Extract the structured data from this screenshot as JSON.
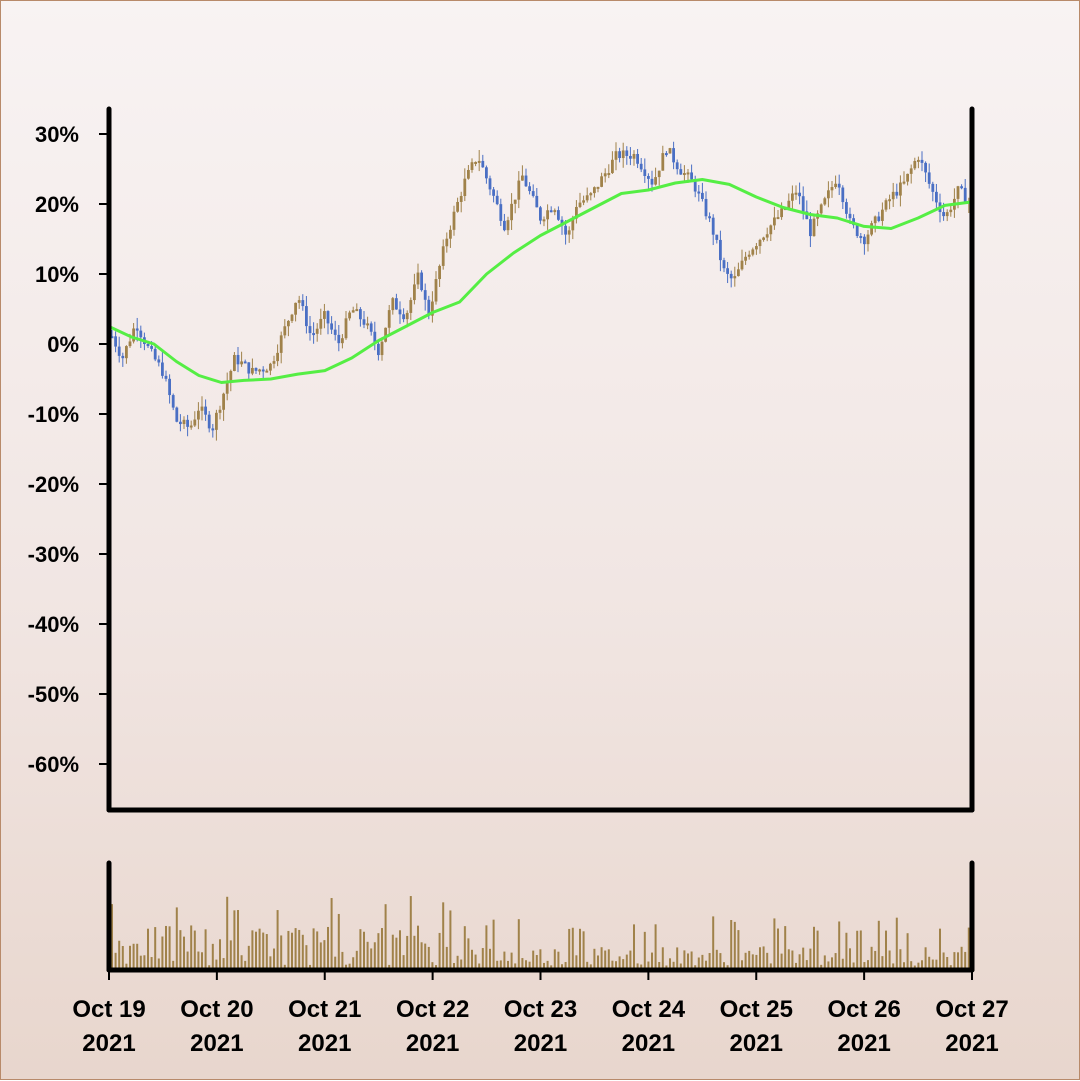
{
  "colors": {
    "up": "#a0824a",
    "down": "#4a6fc4",
    "ma": "#55ee44",
    "volume": "#a0824a",
    "axis": "#000000"
  },
  "chart_data": {
    "type": "candlestick",
    "title": "",
    "ylabel": "",
    "y_unit": "%",
    "ylim": [
      -67,
      33
    ],
    "y_ticks": [
      30,
      20,
      10,
      0,
      -10,
      -20,
      -30,
      -40,
      -50,
      -60
    ],
    "y_tick_labels": [
      "30%",
      "20%",
      "10%",
      "0%",
      "-10%",
      "-20%",
      "-30%",
      "-40%",
      "-50%",
      "-60%"
    ],
    "x_range": [
      "2021-10-19",
      "2021-10-27"
    ],
    "x_ticks": [
      {
        "date": "2021-10-19",
        "line1": "Oct 19",
        "line2": "2021"
      },
      {
        "date": "2021-10-20",
        "line1": "Oct 20",
        "line2": "2021"
      },
      {
        "date": "2021-10-21",
        "line1": "Oct 21",
        "line2": "2021"
      },
      {
        "date": "2021-10-22",
        "line1": "Oct 22",
        "line2": "2021"
      },
      {
        "date": "2021-10-23",
        "line1": "Oct 23",
        "line2": "2021"
      },
      {
        "date": "2021-10-24",
        "line1": "Oct 24",
        "line2": "2021"
      },
      {
        "date": "2021-10-25",
        "line1": "Oct 25",
        "line2": "2021"
      },
      {
        "date": "2021-10-26",
        "line1": "Oct 26",
        "line2": "2021"
      },
      {
        "date": "2021-10-27",
        "line1": "Oct 27",
        "line2": "2021"
      }
    ],
    "close_path": [
      [
        "2021-10-19T00:00",
        2
      ],
      [
        "2021-10-19T03:00",
        -2
      ],
      [
        "2021-10-19T06:00",
        3
      ],
      [
        "2021-10-19T09:00",
        -1
      ],
      [
        "2021-10-19T12:00",
        -4
      ],
      [
        "2021-10-19T15:00",
        -11
      ],
      [
        "2021-10-19T18:00",
        -12
      ],
      [
        "2021-10-19T20:00",
        -9
      ],
      [
        "2021-10-19T23:00",
        -12
      ],
      [
        "2021-10-20T01:00",
        -8
      ],
      [
        "2021-10-20T04:00",
        -2
      ],
      [
        "2021-10-20T08:00",
        -4
      ],
      [
        "2021-10-20T12:00",
        -3
      ],
      [
        "2021-10-20T18:00",
        7
      ],
      [
        "2021-10-20T21:00",
        1
      ],
      [
        "2021-10-21T00:00",
        4
      ],
      [
        "2021-10-21T03:00",
        0
      ],
      [
        "2021-10-21T06:00",
        5
      ],
      [
        "2021-10-21T09:00",
        3
      ],
      [
        "2021-10-21T12:00",
        -1
      ],
      [
        "2021-10-21T15:00",
        6
      ],
      [
        "2021-10-21T18:00",
        4
      ],
      [
        "2021-10-21T21:00",
        10
      ],
      [
        "2021-10-21T23:00",
        4
      ],
      [
        "2021-10-22T03:00",
        15
      ],
      [
        "2021-10-22T07:00",
        23
      ],
      [
        "2021-10-22T10:00",
        27
      ],
      [
        "2021-10-22T13:00",
        22
      ],
      [
        "2021-10-22T16:00",
        17
      ],
      [
        "2021-10-22T20:00",
        24
      ],
      [
        "2021-10-23T00:00",
        18
      ],
      [
        "2021-10-23T03:00",
        20
      ],
      [
        "2021-10-23T06:00",
        15
      ],
      [
        "2021-10-23T08:00",
        20
      ],
      [
        "2021-10-23T11:00",
        21
      ],
      [
        "2021-10-23T14:00",
        24
      ],
      [
        "2021-10-23T17:00",
        27
      ],
      [
        "2021-10-23T21:00",
        27
      ],
      [
        "2021-10-24T01:00",
        23
      ],
      [
        "2021-10-24T04:00",
        28
      ],
      [
        "2021-10-24T07:00",
        25
      ],
      [
        "2021-10-24T10:00",
        23
      ],
      [
        "2021-10-24T14:00",
        17
      ],
      [
        "2021-10-24T17:00",
        10
      ],
      [
        "2021-10-24T19:00",
        9
      ],
      [
        "2021-10-24T22:00",
        13
      ],
      [
        "2021-10-25T02:00",
        16
      ],
      [
        "2021-10-25T06:00",
        19
      ],
      [
        "2021-10-25T09:00",
        22
      ],
      [
        "2021-10-25T12:00",
        16
      ],
      [
        "2021-10-25T15:00",
        20
      ],
      [
        "2021-10-25T18:00",
        24
      ],
      [
        "2021-10-25T21:00",
        17
      ],
      [
        "2021-10-26T00:00",
        15
      ],
      [
        "2021-10-26T03:00",
        18
      ],
      [
        "2021-10-26T06:00",
        21
      ],
      [
        "2021-10-26T09:00",
        23
      ],
      [
        "2021-10-26T12:00",
        27
      ],
      [
        "2021-10-26T15:00",
        22
      ],
      [
        "2021-10-26T18:00",
        18
      ],
      [
        "2021-10-26T21:00",
        22
      ],
      [
        "2021-10-27T00:00",
        20
      ]
    ],
    "moving_average": [
      [
        "2021-10-19T00:00",
        2.5
      ],
      [
        "2021-10-19T05:00",
        1
      ],
      [
        "2021-10-19T10:00",
        0
      ],
      [
        "2021-10-19T15:00",
        -2.5
      ],
      [
        "2021-10-19T20:00",
        -4.5
      ],
      [
        "2021-10-20T01:00",
        -5.5
      ],
      [
        "2021-10-20T06:00",
        -5.2
      ],
      [
        "2021-10-20T12:00",
        -5
      ],
      [
        "2021-10-20T18:00",
        -4.3
      ],
      [
        "2021-10-21T00:00",
        -3.8
      ],
      [
        "2021-10-21T06:00",
        -2
      ],
      [
        "2021-10-21T12:00",
        0.5
      ],
      [
        "2021-10-21T18:00",
        2.5
      ],
      [
        "2021-10-22T00:00",
        4.5
      ],
      [
        "2021-10-22T06:00",
        6
      ],
      [
        "2021-10-22T12:00",
        10
      ],
      [
        "2021-10-22T18:00",
        13
      ],
      [
        "2021-10-23T00:00",
        15.5
      ],
      [
        "2021-10-23T06:00",
        17.5
      ],
      [
        "2021-10-23T12:00",
        19.5
      ],
      [
        "2021-10-23T18:00",
        21.5
      ],
      [
        "2021-10-24T00:00",
        22
      ],
      [
        "2021-10-24T06:00",
        23
      ],
      [
        "2021-10-24T12:00",
        23.5
      ],
      [
        "2021-10-24T18:00",
        22.8
      ],
      [
        "2021-10-25T00:00",
        21
      ],
      [
        "2021-10-25T06:00",
        19.5
      ],
      [
        "2021-10-25T12:00",
        18.5
      ],
      [
        "2021-10-25T18:00",
        18
      ],
      [
        "2021-10-26T00:00",
        16.8
      ],
      [
        "2021-10-26T06:00",
        16.5
      ],
      [
        "2021-10-26T12:00",
        18
      ],
      [
        "2021-10-26T18:00",
        19.8
      ],
      [
        "2021-10-27T00:00",
        20.3
      ]
    ],
    "grid": false,
    "legend": "none",
    "volume_panel": true
  }
}
